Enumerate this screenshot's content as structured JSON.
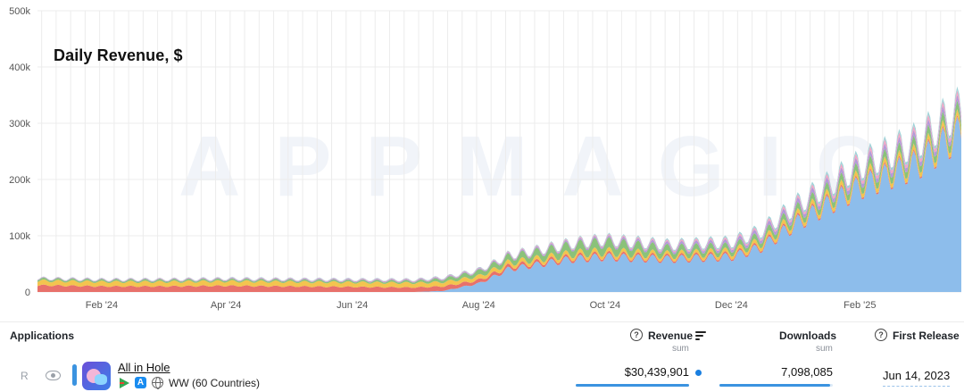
{
  "chart_data": {
    "type": "area",
    "title": "Daily Revenue, $",
    "watermark": "APPMAGIC",
    "x_tick_labels": [
      "Feb '24",
      "Apr '24",
      "Jun '24",
      "Aug '24",
      "Oct '24",
      "Dec '24",
      "Feb '25"
    ],
    "y_tick_labels": [
      "0",
      "100k",
      "200k",
      "300k",
      "400k",
      "500k"
    ],
    "ylim": [
      0,
      500000
    ],
    "xlim": [
      "2024-01-01",
      "2025-03-22"
    ],
    "grid": true,
    "stacked": true,
    "series": [
      {
        "color": "#8dbdeb",
        "x": [
          "2024-01-01",
          "2024-02-01",
          "2024-03-01",
          "2024-04-01",
          "2024-05-01",
          "2024-06-01",
          "2024-07-01",
          "2024-07-15",
          "2024-08-01",
          "2024-08-10",
          "2024-08-15",
          "2024-09-01",
          "2024-09-15",
          "2024-10-01",
          "2024-10-15",
          "2024-11-01",
          "2024-11-15",
          "2024-12-01",
          "2024-12-15",
          "2025-01-01",
          "2025-01-15",
          "2025-02-01",
          "2025-02-15",
          "2025-03-01",
          "2025-03-10",
          "2025-03-15",
          "2025-03-22"
        ],
        "values": [
          0,
          0,
          0,
          0,
          0,
          0,
          0,
          2000,
          15000,
          30000,
          40000,
          50000,
          58000,
          62000,
          60000,
          58000,
          60000,
          62000,
          78000,
          120000,
          150000,
          185000,
          205000,
          225000,
          250000,
          265000,
          280000
        ]
      },
      {
        "color": "#e8716b",
        "x": [
          "2024-01-01",
          "2024-02-01",
          "2024-03-01",
          "2024-04-01",
          "2024-05-01",
          "2024-06-01",
          "2024-07-01",
          "2024-07-15",
          "2024-08-01",
          "2024-08-15",
          "2024-09-01",
          "2024-10-01",
          "2024-11-01",
          "2024-12-01",
          "2025-01-01",
          "2025-02-01",
          "2025-03-22"
        ],
        "values": [
          12000,
          10000,
          10000,
          11000,
          10000,
          9000,
          8000,
          8000,
          6000,
          5000,
          4000,
          3500,
          3000,
          3000,
          3000,
          3000,
          3000
        ]
      },
      {
        "color": "#f3c44f",
        "x": [
          "2024-01-01",
          "2024-02-01",
          "2024-03-01",
          "2024-04-01",
          "2024-05-01",
          "2024-06-01",
          "2024-07-01",
          "2024-08-01",
          "2024-09-01",
          "2024-10-01",
          "2024-11-01",
          "2024-12-01",
          "2025-01-01",
          "2025-02-01",
          "2025-03-22"
        ],
        "values": [
          8000,
          8000,
          8000,
          8000,
          8000,
          8000,
          8000,
          7000,
          6000,
          6000,
          5000,
          6000,
          7000,
          8000,
          9000
        ]
      },
      {
        "color": "#8ac27a",
        "x": [
          "2024-01-01",
          "2024-02-01",
          "2024-03-01",
          "2024-04-01",
          "2024-05-01",
          "2024-06-01",
          "2024-07-01",
          "2024-08-01",
          "2024-09-01",
          "2024-10-01",
          "2024-11-01",
          "2024-12-01",
          "2025-01-01",
          "2025-02-01",
          "2025-03-22"
        ],
        "values": [
          3000,
          2500,
          2500,
          2500,
          2500,
          2500,
          3000,
          8000,
          12000,
          16000,
          10000,
          8000,
          10000,
          12000,
          14000
        ]
      },
      {
        "color": "#b39ad9",
        "x": [
          "2024-01-01",
          "2024-08-01",
          "2024-10-01",
          "2024-12-01",
          "2025-01-01",
          "2025-02-01",
          "2025-03-22"
        ],
        "values": [
          800,
          1500,
          3000,
          5000,
          7000,
          8000,
          9000
        ]
      },
      {
        "color": "#f2a7c4",
        "x": [
          "2024-01-01",
          "2024-08-01",
          "2024-10-01",
          "2024-12-01",
          "2025-01-01",
          "2025-02-01",
          "2025-03-22"
        ],
        "values": [
          500,
          1000,
          2000,
          3000,
          4000,
          6000,
          7000
        ]
      },
      {
        "color": "#9fd3d8",
        "x": [
          "2024-01-01",
          "2024-08-01",
          "2024-10-01",
          "2024-12-01",
          "2025-01-01",
          "2025-02-01",
          "2025-03-22"
        ],
        "values": [
          400,
          800,
          1500,
          2500,
          3500,
          5000,
          6000
        ]
      }
    ]
  },
  "table": {
    "headers": {
      "applications": "Applications",
      "revenue": "Revenue",
      "revenue_sub": "sum",
      "downloads": "Downloads",
      "downloads_sub": "sum",
      "first_release": "First Release",
      "help_glyph": "?"
    },
    "rows": [
      {
        "rank": "R",
        "name": "All in Hole",
        "store_glyph": "A",
        "region": "WW (60 Countries)",
        "revenue": "$30,439,901",
        "downloads": "7,098,085",
        "downloads_fraction": 0.98,
        "first_release": "Jun 14, 2023"
      }
    ]
  }
}
